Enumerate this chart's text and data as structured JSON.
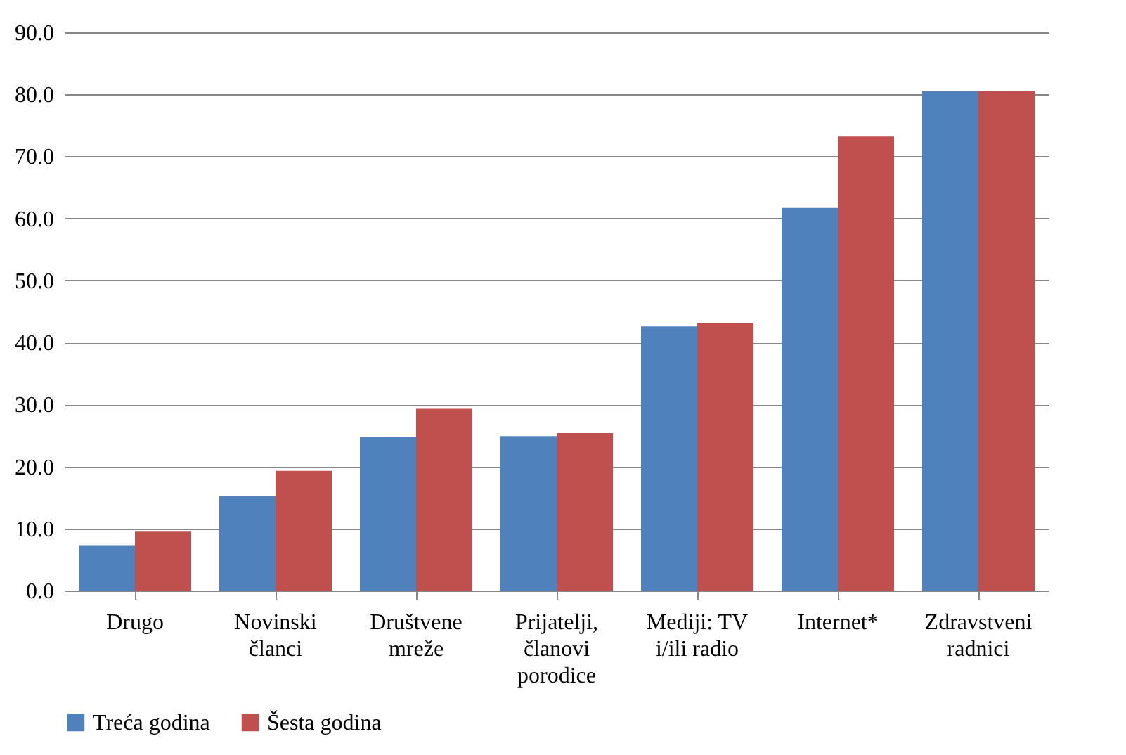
{
  "chart_data": {
    "type": "bar",
    "categories": [
      "Drugo",
      "Novinski\nčlanci",
      "Društvene\nmreže",
      "Prijatelji,\nčlanovi\nporodice",
      "Mediji: TV\ni/ili radio",
      "Internet*",
      "Zdravstveni\nradnici"
    ],
    "series": [
      {
        "name": "Treća godina",
        "color": "#4f81bd",
        "values": [
          7.3,
          15.2,
          24.7,
          24.9,
          42.6,
          61.7,
          80.5
        ]
      },
      {
        "name": "Šesta godina",
        "color": "#c0504d",
        "values": [
          9.5,
          19.3,
          29.3,
          25.4,
          43.1,
          73.2,
          80.5
        ]
      }
    ],
    "ylim": [
      0,
      90
    ],
    "yticks": [
      {
        "value": 0,
        "label": "0.0"
      },
      {
        "value": 10,
        "label": "10.0"
      },
      {
        "value": 20,
        "label": "20.0"
      },
      {
        "value": 30,
        "label": "30.0"
      },
      {
        "value": 40,
        "label": "40.0"
      },
      {
        "value": 50,
        "label": "50.0"
      },
      {
        "value": 60,
        "label": "60.0"
      },
      {
        "value": 70,
        "label": "70.0"
      },
      {
        "value": 80,
        "label": "80.0"
      },
      {
        "value": 90,
        "label": "90.0"
      }
    ],
    "grid": true,
    "legend": "bottom"
  }
}
